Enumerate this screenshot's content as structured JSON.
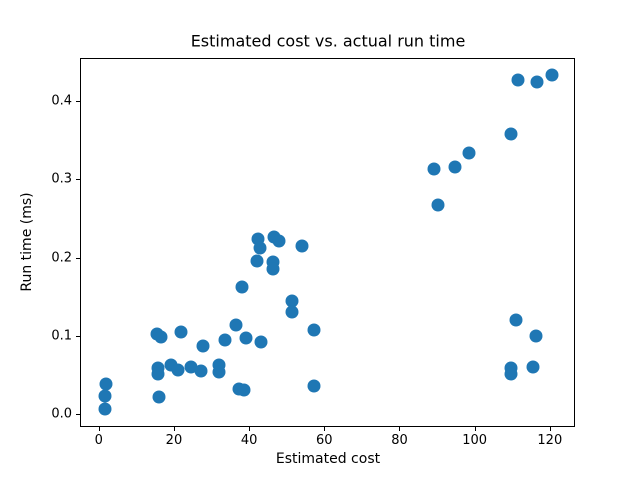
{
  "chart_data": {
    "type": "scatter",
    "title": "Estimated cost vs. actual run time",
    "xlabel": "Estimated cost",
    "ylabel": "Run time (ms)",
    "xlim": [
      -5.0,
      126.7
    ],
    "ylim": [
      -0.016,
      0.455
    ],
    "x_ticks": [
      0,
      20,
      40,
      60,
      80,
      100,
      120
    ],
    "x_tick_labels": [
      "0",
      "20",
      "40",
      "60",
      "80",
      "100",
      "120"
    ],
    "y_ticks": [
      0.0,
      0.1,
      0.2,
      0.3,
      0.4
    ],
    "y_tick_labels": [
      "0.0",
      "0.1",
      "0.2",
      "0.3",
      "0.4"
    ],
    "marker_color": "#1f77b4",
    "grid": false,
    "legend": null,
    "points": [
      [
        2.0,
        0.039
      ],
      [
        1.7,
        0.023
      ],
      [
        1.7,
        0.007
      ],
      [
        15.4,
        0.103
      ],
      [
        16.5,
        0.099
      ],
      [
        21.8,
        0.105
      ],
      [
        15.8,
        0.059
      ],
      [
        15.8,
        0.051
      ],
      [
        15.9,
        0.022
      ],
      [
        19.3,
        0.063
      ],
      [
        21.2,
        0.057
      ],
      [
        24.6,
        0.061
      ],
      [
        27.1,
        0.055
      ],
      [
        31.9,
        0.063
      ],
      [
        31.9,
        0.054
      ],
      [
        27.8,
        0.087
      ],
      [
        33.5,
        0.095
      ],
      [
        36.4,
        0.114
      ],
      [
        39.2,
        0.097
      ],
      [
        43.2,
        0.092
      ],
      [
        37.4,
        0.033
      ],
      [
        38.6,
        0.031
      ],
      [
        38.0,
        0.163
      ],
      [
        42.3,
        0.224
      ],
      [
        43.0,
        0.212
      ],
      [
        42.2,
        0.196
      ],
      [
        46.5,
        0.226
      ],
      [
        48.0,
        0.221
      ],
      [
        46.3,
        0.195
      ],
      [
        46.3,
        0.186
      ],
      [
        54.0,
        0.215
      ],
      [
        51.3,
        0.145
      ],
      [
        51.3,
        0.13
      ],
      [
        57.3,
        0.108
      ],
      [
        57.3,
        0.036
      ],
      [
        89.3,
        0.313
      ],
      [
        94.7,
        0.315
      ],
      [
        98.5,
        0.333
      ],
      [
        90.3,
        0.267
      ],
      [
        109.7,
        0.357
      ],
      [
        111.5,
        0.426
      ],
      [
        116.6,
        0.424
      ],
      [
        120.6,
        0.433
      ],
      [
        110.9,
        0.121
      ],
      [
        116.4,
        0.1
      ],
      [
        109.6,
        0.059
      ],
      [
        109.6,
        0.052
      ],
      [
        115.6,
        0.06
      ]
    ]
  }
}
